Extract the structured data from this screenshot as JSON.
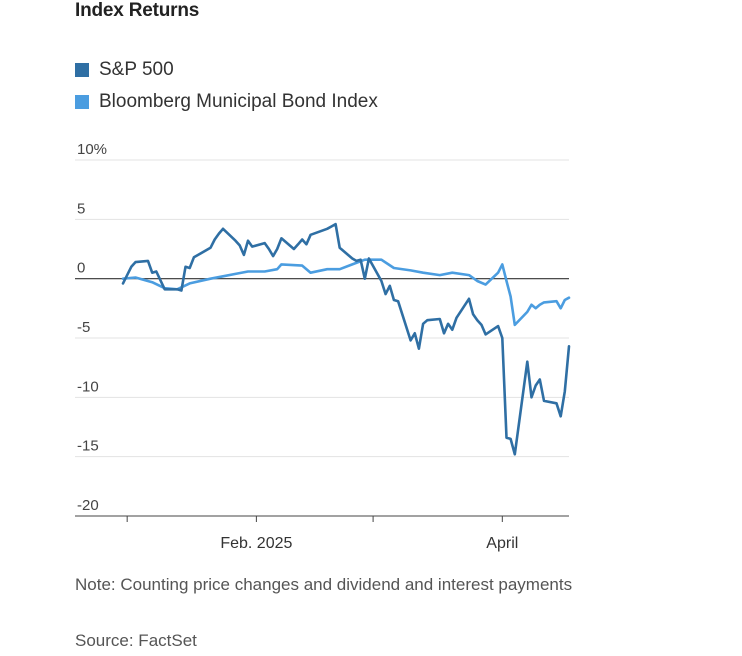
{
  "title": "Index Returns",
  "legend": [
    {
      "label": "S&P 500",
      "color": "#2f6fa4"
    },
    {
      "label": "Bloomberg Municipal Bond Index",
      "color": "#4b9de0"
    }
  ],
  "note": "Note: Counting price changes and dividend and interest payments",
  "source": "Source: FactSet",
  "chart_data": {
    "type": "line",
    "y_ticks": [
      10,
      5,
      0,
      -5,
      -10,
      -15,
      -20
    ],
    "y_tick_labels": [
      "10%",
      "5",
      "0",
      "-5",
      "-10",
      "-15",
      "-20"
    ],
    "ylim": [
      -20,
      10
    ],
    "x_ticks": [
      {
        "label": "",
        "date": "2025-01-01"
      },
      {
        "label": "Feb. 2025",
        "date": "2025-02-01"
      },
      {
        "label": "",
        "date": "2025-03-01"
      },
      {
        "label": "April",
        "date": "2025-04-01"
      }
    ],
    "xlim": [
      "2024-12-31",
      "2025-04-17"
    ],
    "grid": true,
    "series": [
      {
        "name": "S&P 500",
        "color": "#2f6fa4",
        "points": [
          [
            "2024-12-31",
            -0.4
          ],
          [
            "2025-01-02",
            1.0
          ],
          [
            "2025-01-03",
            1.4
          ],
          [
            "2025-01-06",
            1.5
          ],
          [
            "2025-01-07",
            0.5
          ],
          [
            "2025-01-08",
            0.6
          ],
          [
            "2025-01-10",
            -0.9
          ],
          [
            "2025-01-13",
            -0.9
          ],
          [
            "2025-01-14",
            -1.0
          ],
          [
            "2025-01-15",
            1.0
          ],
          [
            "2025-01-16",
            0.9
          ],
          [
            "2025-01-17",
            1.8
          ],
          [
            "2025-01-21",
            2.6
          ],
          [
            "2025-01-22",
            3.3
          ],
          [
            "2025-01-23",
            3.8
          ],
          [
            "2025-01-24",
            4.2
          ],
          [
            "2025-01-27",
            3.2
          ],
          [
            "2025-01-28",
            2.8
          ],
          [
            "2025-01-29",
            2.0
          ],
          [
            "2025-01-30",
            3.2
          ],
          [
            "2025-01-31",
            2.7
          ],
          [
            "2025-02-03",
            3.0
          ],
          [
            "2025-02-04",
            2.5
          ],
          [
            "2025-02-05",
            1.9
          ],
          [
            "2025-02-06",
            2.5
          ],
          [
            "2025-02-07",
            3.4
          ],
          [
            "2025-02-10",
            2.5
          ],
          [
            "2025-02-11",
            2.9
          ],
          [
            "2025-02-12",
            3.3
          ],
          [
            "2025-02-13",
            2.9
          ],
          [
            "2025-02-14",
            3.7
          ],
          [
            "2025-02-18",
            4.2
          ],
          [
            "2025-02-19",
            4.4
          ],
          [
            "2025-02-20",
            4.6
          ],
          [
            "2025-02-21",
            2.6
          ],
          [
            "2025-02-24",
            1.7
          ],
          [
            "2025-02-25",
            1.5
          ],
          [
            "2025-02-26",
            1.6
          ],
          [
            "2025-02-27",
            0.0
          ],
          [
            "2025-02-28",
            1.7
          ],
          [
            "2025-03-03",
            -0.2
          ],
          [
            "2025-03-04",
            -1.3
          ],
          [
            "2025-03-05",
            -0.6
          ],
          [
            "2025-03-06",
            -1.8
          ],
          [
            "2025-03-07",
            -1.9
          ],
          [
            "2025-03-10",
            -5.2
          ],
          [
            "2025-03-11",
            -4.6
          ],
          [
            "2025-03-12",
            -5.9
          ],
          [
            "2025-03-13",
            -3.8
          ],
          [
            "2025-03-14",
            -3.5
          ],
          [
            "2025-03-17",
            -3.4
          ],
          [
            "2025-03-18",
            -4.6
          ],
          [
            "2025-03-19",
            -3.8
          ],
          [
            "2025-03-20",
            -4.3
          ],
          [
            "2025-03-21",
            -3.3
          ],
          [
            "2025-03-24",
            -1.7
          ],
          [
            "2025-03-25",
            -3.0
          ],
          [
            "2025-03-26",
            -3.5
          ],
          [
            "2025-03-27",
            -3.9
          ],
          [
            "2025-03-28",
            -4.7
          ],
          [
            "2025-03-31",
            -4.0
          ],
          [
            "2025-04-01",
            -5.0
          ],
          [
            "2025-04-02",
            -13.4
          ],
          [
            "2025-04-03",
            -13.5
          ],
          [
            "2025-04-04",
            -14.8
          ],
          [
            "2025-04-07",
            -7.0
          ],
          [
            "2025-04-08",
            -10.0
          ],
          [
            "2025-04-09",
            -9.0
          ],
          [
            "2025-04-10",
            -8.5
          ],
          [
            "2025-04-11",
            -10.3
          ],
          [
            "2025-04-14",
            -10.5
          ],
          [
            "2025-04-15",
            -11.6
          ],
          [
            "2025-04-16",
            -9.5
          ],
          [
            "2025-04-17",
            -5.7
          ]
        ]
      },
      {
        "name": "Bloomberg Municipal Bond Index",
        "color": "#4b9de0",
        "points": [
          [
            "2024-12-31",
            0.0
          ],
          [
            "2025-01-03",
            0.1
          ],
          [
            "2025-01-07",
            -0.3
          ],
          [
            "2025-01-10",
            -0.8
          ],
          [
            "2025-01-13",
            -0.9
          ],
          [
            "2025-01-16",
            -0.4
          ],
          [
            "2025-01-21",
            0.0
          ],
          [
            "2025-01-24",
            0.2
          ],
          [
            "2025-01-27",
            0.4
          ],
          [
            "2025-01-30",
            0.6
          ],
          [
            "2025-02-03",
            0.6
          ],
          [
            "2025-02-06",
            0.8
          ],
          [
            "2025-02-07",
            1.2
          ],
          [
            "2025-02-12",
            1.1
          ],
          [
            "2025-02-14",
            0.5
          ],
          [
            "2025-02-18",
            0.8
          ],
          [
            "2025-02-21",
            0.8
          ],
          [
            "2025-02-24",
            1.2
          ],
          [
            "2025-02-27",
            1.6
          ],
          [
            "2025-03-03",
            1.6
          ],
          [
            "2025-03-06",
            0.9
          ],
          [
            "2025-03-10",
            0.7
          ],
          [
            "2025-03-13",
            0.5
          ],
          [
            "2025-03-17",
            0.3
          ],
          [
            "2025-03-20",
            0.5
          ],
          [
            "2025-03-24",
            0.3
          ],
          [
            "2025-03-26",
            -0.2
          ],
          [
            "2025-03-28",
            -0.5
          ],
          [
            "2025-03-31",
            0.5
          ],
          [
            "2025-04-01",
            1.2
          ],
          [
            "2025-04-02",
            -0.2
          ],
          [
            "2025-04-03",
            -1.5
          ],
          [
            "2025-04-04",
            -3.9
          ],
          [
            "2025-04-07",
            -2.8
          ],
          [
            "2025-04-08",
            -2.2
          ],
          [
            "2025-04-09",
            -2.5
          ],
          [
            "2025-04-10",
            -2.2
          ],
          [
            "2025-04-11",
            -2.0
          ],
          [
            "2025-04-14",
            -1.9
          ],
          [
            "2025-04-15",
            -2.5
          ],
          [
            "2025-04-16",
            -1.8
          ],
          [
            "2025-04-17",
            -1.6
          ]
        ]
      }
    ]
  }
}
